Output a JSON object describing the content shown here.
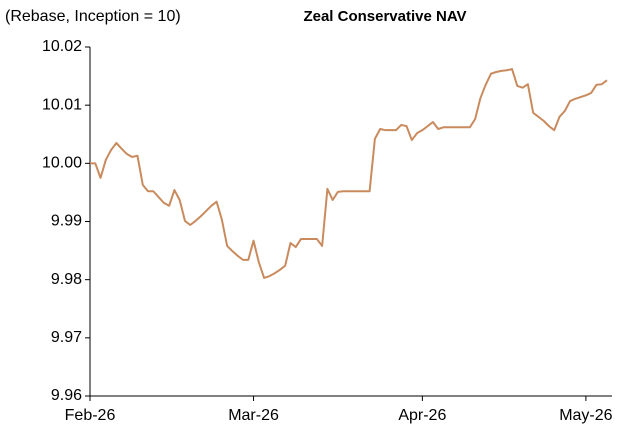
{
  "chart_data": {
    "type": "line",
    "title": "Zeal Conservative NAV",
    "subtitle": "(Rebase, Inception = 10)",
    "color": "#c98b5e",
    "categories": [
      "Feb-26",
      null,
      null,
      null,
      null,
      null,
      null,
      null,
      null,
      null,
      null,
      null,
      null,
      null,
      null,
      null,
      null,
      null,
      null,
      null,
      null,
      null,
      null,
      null,
      null,
      null,
      null,
      null,
      null,
      null,
      null,
      "Mar-26",
      null,
      null,
      null,
      null,
      null,
      null,
      null,
      null,
      null,
      null,
      null,
      null,
      null,
      null,
      null,
      null,
      null,
      null,
      null,
      null,
      null,
      null,
      null,
      null,
      null,
      null,
      null,
      null,
      null,
      null,
      null,
      "Apr-26",
      null,
      null,
      null,
      null,
      null,
      null,
      null,
      null,
      null,
      null,
      null,
      null,
      null,
      null,
      null,
      null,
      null,
      null,
      null,
      null,
      null,
      null,
      null,
      null,
      null,
      null,
      null,
      null,
      null,
      null,
      "May-26",
      null,
      null,
      null,
      null
    ],
    "values": [
      10.0,
      10.0,
      9.9975,
      10.0006,
      10.0023,
      10.0035,
      10.0025,
      10.0016,
      10.0011,
      10.0013,
      9.9963,
      9.9952,
      9.9952,
      9.9942,
      9.9932,
      9.9927,
      9.9954,
      9.9937,
      9.9901,
      9.9894,
      9.9901,
      9.9909,
      9.9918,
      9.9927,
      9.9934,
      9.9903,
      9.9858,
      9.9849,
      9.9841,
      9.9834,
      9.9834,
      9.9867,
      9.983,
      9.9803,
      9.9806,
      9.9811,
      9.9817,
      9.9824,
      9.9863,
      9.9856,
      9.987,
      9.987,
      9.987,
      9.987,
      9.9858,
      9.9956,
      9.9937,
      9.9951,
      9.9952,
      9.9952,
      9.9952,
      9.9952,
      9.9952,
      9.9952,
      10.0042,
      10.0059,
      10.0057,
      10.0057,
      10.0057,
      10.0066,
      10.0064,
      10.004,
      10.0052,
      10.0057,
      10.0064,
      10.0071,
      10.0059,
      10.0062,
      10.0062,
      10.0062,
      10.0062,
      10.0062,
      10.0062,
      10.0076,
      10.0112,
      10.0135,
      10.0154,
      10.0157,
      10.0159,
      10.016,
      10.0162,
      10.0133,
      10.013,
      10.0136,
      10.0087,
      10.008,
      10.0073,
      10.0064,
      10.0057,
      10.008,
      10.009,
      10.0107,
      10.0111,
      10.0114,
      10.0117,
      10.0121,
      10.0135,
      10.0136,
      10.0143
    ],
    "ylim": [
      9.96,
      10.02
    ],
    "yticks": [
      9.96,
      9.97,
      9.98,
      9.99,
      {
        "value": 10,
        "label": "10.00"
      },
      10.01,
      10.02
    ],
    "grid": false
  }
}
